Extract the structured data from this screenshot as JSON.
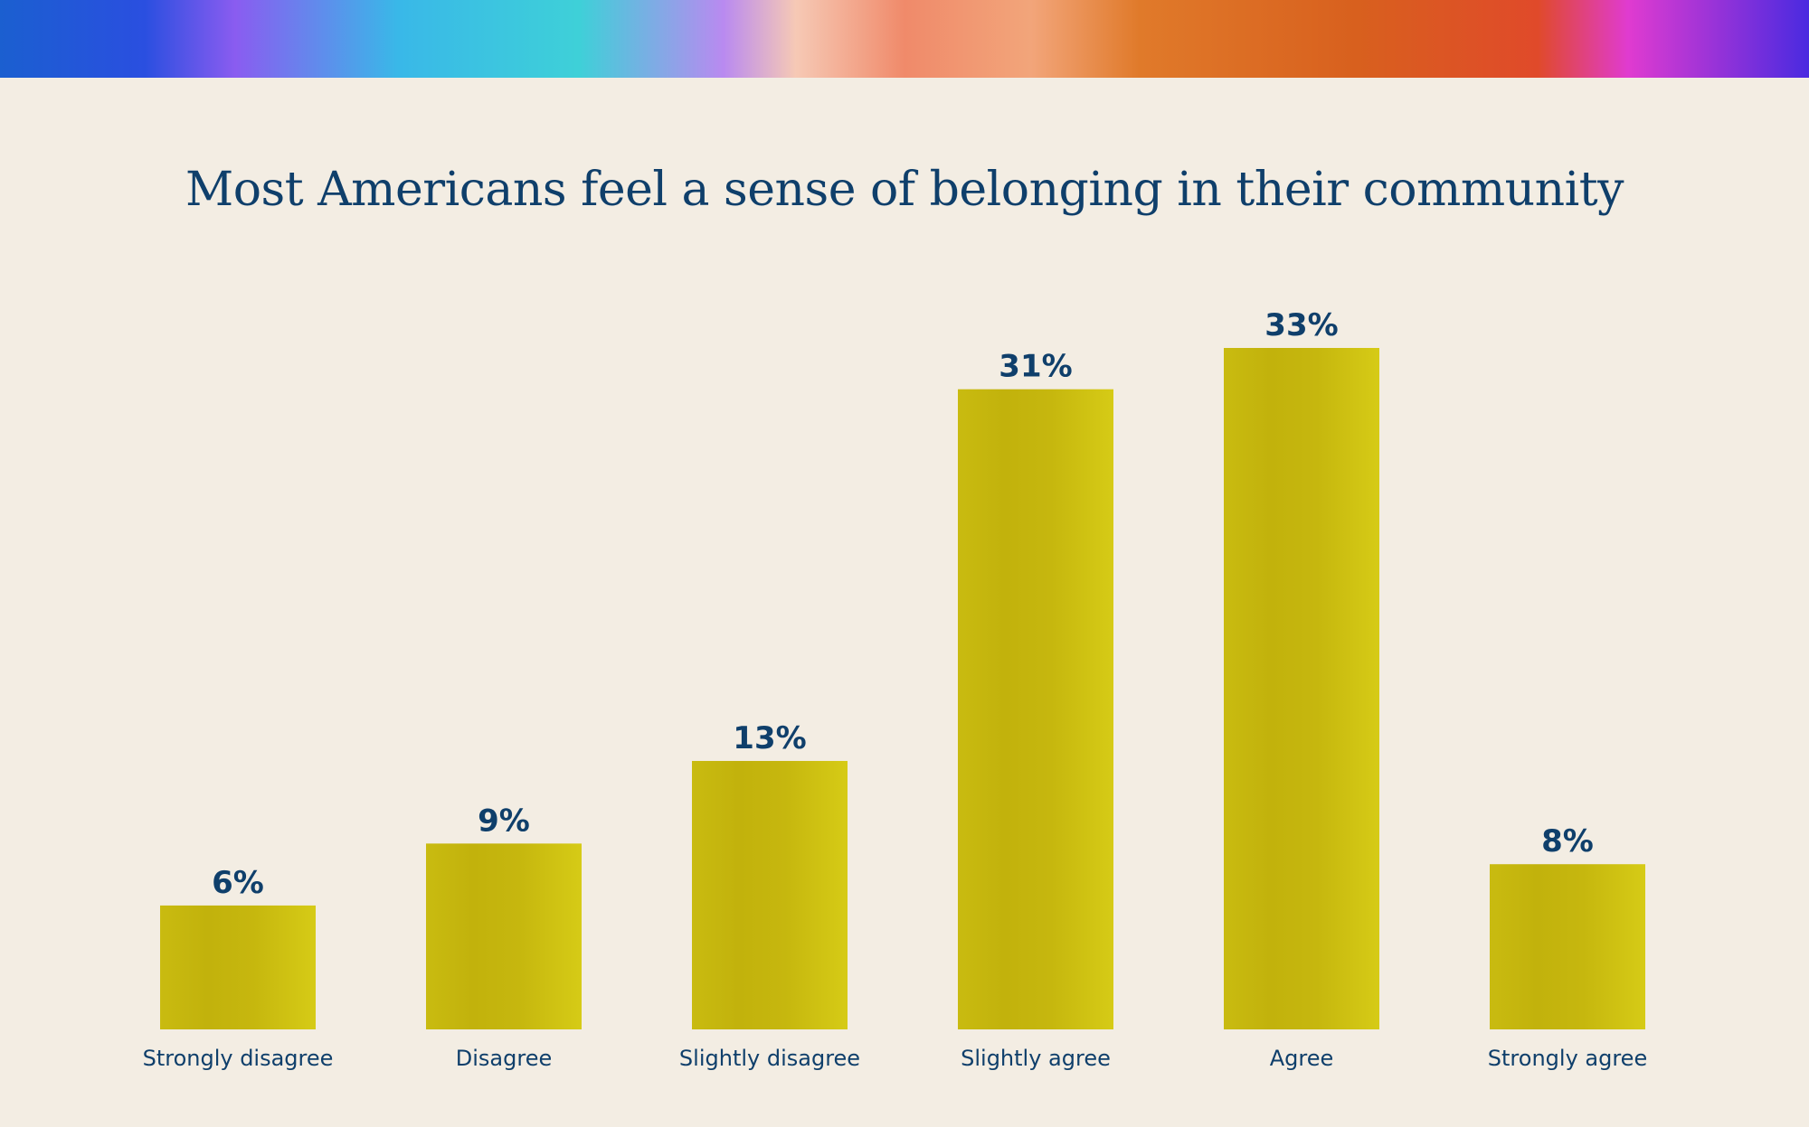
{
  "chart_data": {
    "type": "bar",
    "title": "Most Americans feel a sense of belonging in their community",
    "categories": [
      "Strongly disagree",
      "Disagree",
      "Slightly disagree",
      "Slightly agree",
      "Agree",
      "Strongly agree"
    ],
    "values": [
      6,
      9,
      13,
      31,
      33,
      8
    ],
    "value_labels": [
      "6%",
      "9%",
      "13%",
      "31%",
      "33%",
      "8%"
    ],
    "xlabel": "",
    "ylabel": "",
    "ylim": [
      0,
      33
    ],
    "grid": false,
    "bar_color": "#cfc214"
  }
}
